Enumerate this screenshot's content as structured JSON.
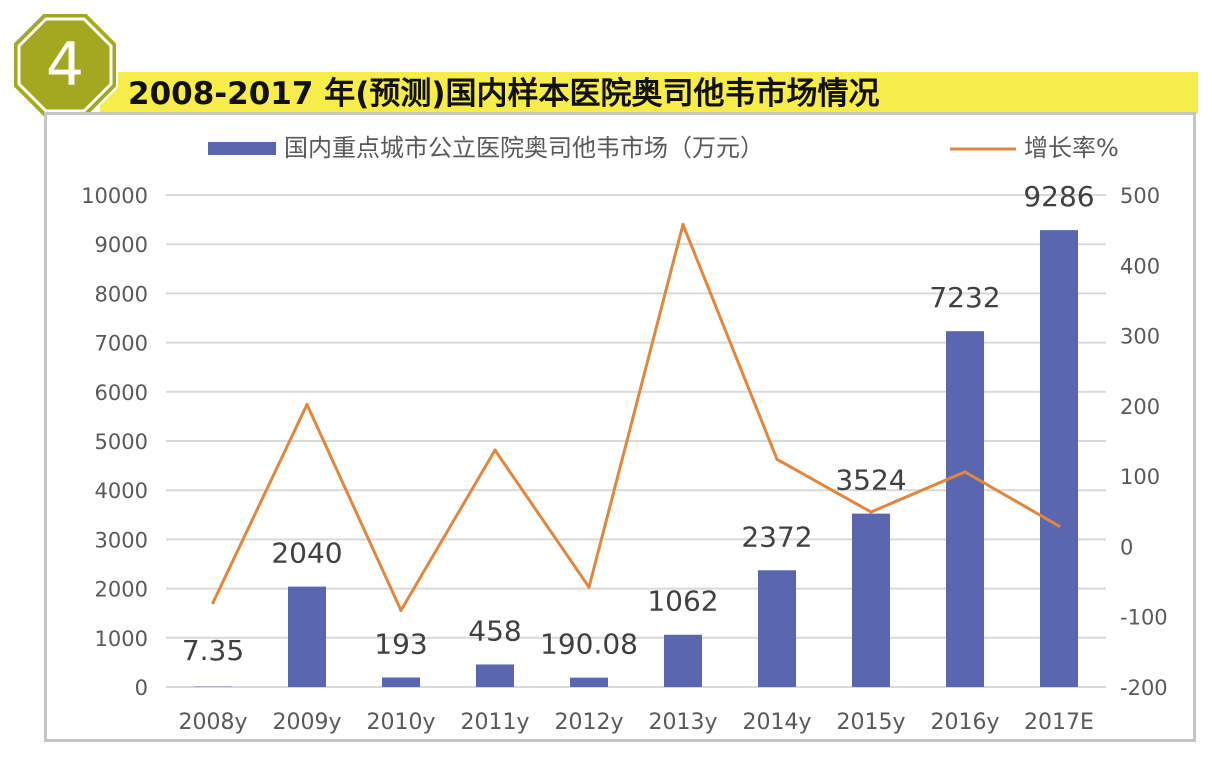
{
  "header": {
    "badge_number": "4",
    "title": "2008-2017 年(预测)国内样本医院奥司他韦市场情况"
  },
  "colors": {
    "bar": "#5b66b0",
    "line": "#e0873f",
    "banner": "#f7ed4a",
    "badge": "#a3a820"
  },
  "chart_data": {
    "type": "bar+line",
    "title": "2008-2017 年(预测)国内样本医院奥司他韦市场情况",
    "categories": [
      "2008y",
      "2009y",
      "2010y",
      "2011y",
      "2012y",
      "2013y",
      "2014y",
      "2015y",
      "2016y",
      "2017E"
    ],
    "series": [
      {
        "name": "国内重点城市公立医院奥司他韦市场（万元）",
        "type": "bar",
        "axis": "left",
        "values": [
          7.35,
          2040,
          193,
          458,
          190.08,
          1062,
          2372,
          3524,
          7232,
          9286
        ],
        "labels": [
          "7.35",
          "2040",
          "193",
          "458",
          "190.08",
          "1062",
          "2372",
          "3524",
          "7232",
          "9286"
        ]
      },
      {
        "name": "增长率%",
        "type": "line",
        "axis": "right",
        "values": [
          -80,
          202,
          -91,
          137,
          -58,
          458,
          124,
          49,
          106,
          29
        ]
      }
    ],
    "y_left": {
      "min": 0,
      "max": 10000,
      "step": 1000,
      "ticks": [
        "0",
        "1000",
        "2000",
        "3000",
        "4000",
        "5000",
        "6000",
        "7000",
        "8000",
        "9000",
        "10000"
      ]
    },
    "y_right": {
      "min": -200,
      "max": 500,
      "step": 100,
      "ticks": [
        "-200",
        "-100",
        "0",
        "100",
        "200",
        "300",
        "400",
        "500"
      ]
    },
    "grid": true,
    "legend_position": "top"
  }
}
